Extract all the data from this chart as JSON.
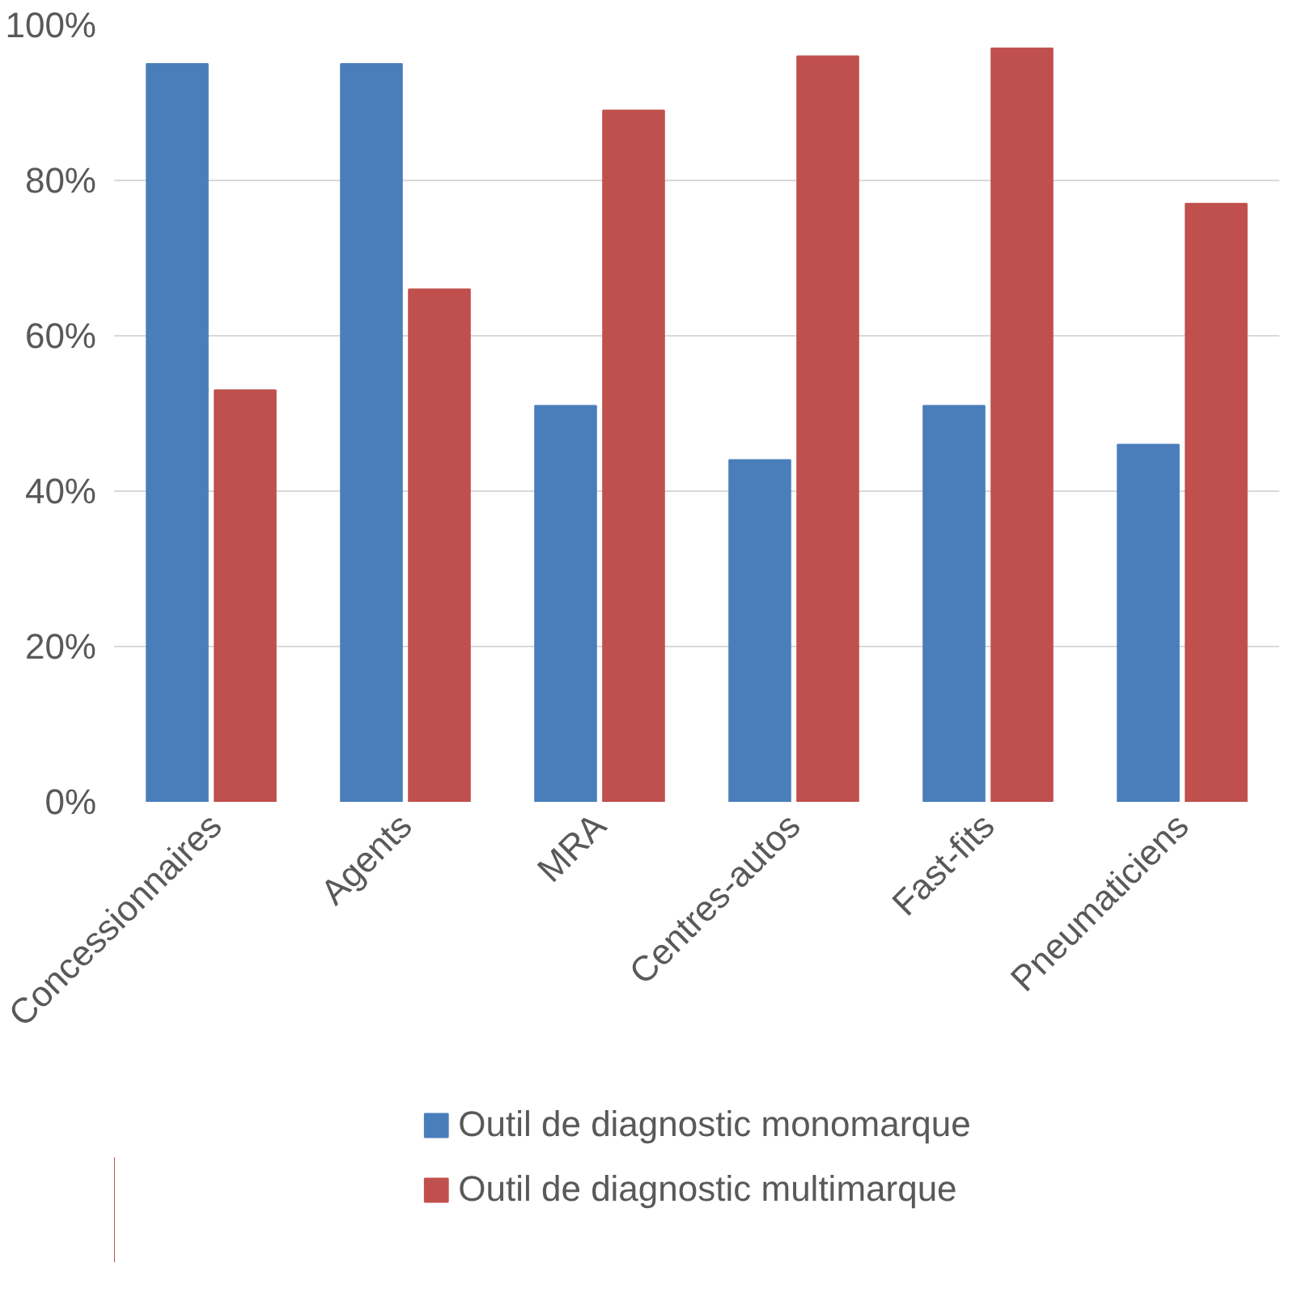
{
  "chart_data": {
    "type": "bar",
    "categories": [
      "Concessionnaires",
      "Agents",
      "MRA",
      "Centres-autos",
      "Fast-fits",
      "Pneumaticiens"
    ],
    "series": [
      {
        "name": "Outil de diagnostic monomarque",
        "color": "#4a7ebb",
        "values": [
          95,
          95,
          51,
          44,
          51,
          46
        ]
      },
      {
        "name": "Outil de diagnostic multimarque",
        "color": "#c0504d",
        "values": [
          53,
          66,
          89,
          96,
          97,
          77
        ]
      }
    ],
    "ylim": [
      0,
      100
    ],
    "yticks": [
      {
        "value": 0,
        "label": "0%"
      },
      {
        "value": 20,
        "label": "20%"
      },
      {
        "value": 40,
        "label": "40%"
      },
      {
        "value": 60,
        "label": "60%"
      },
      {
        "value": 80,
        "label": "80%"
      },
      {
        "value": 100,
        "label": "100%"
      }
    ],
    "grid": "y",
    "legend": "bottom"
  }
}
